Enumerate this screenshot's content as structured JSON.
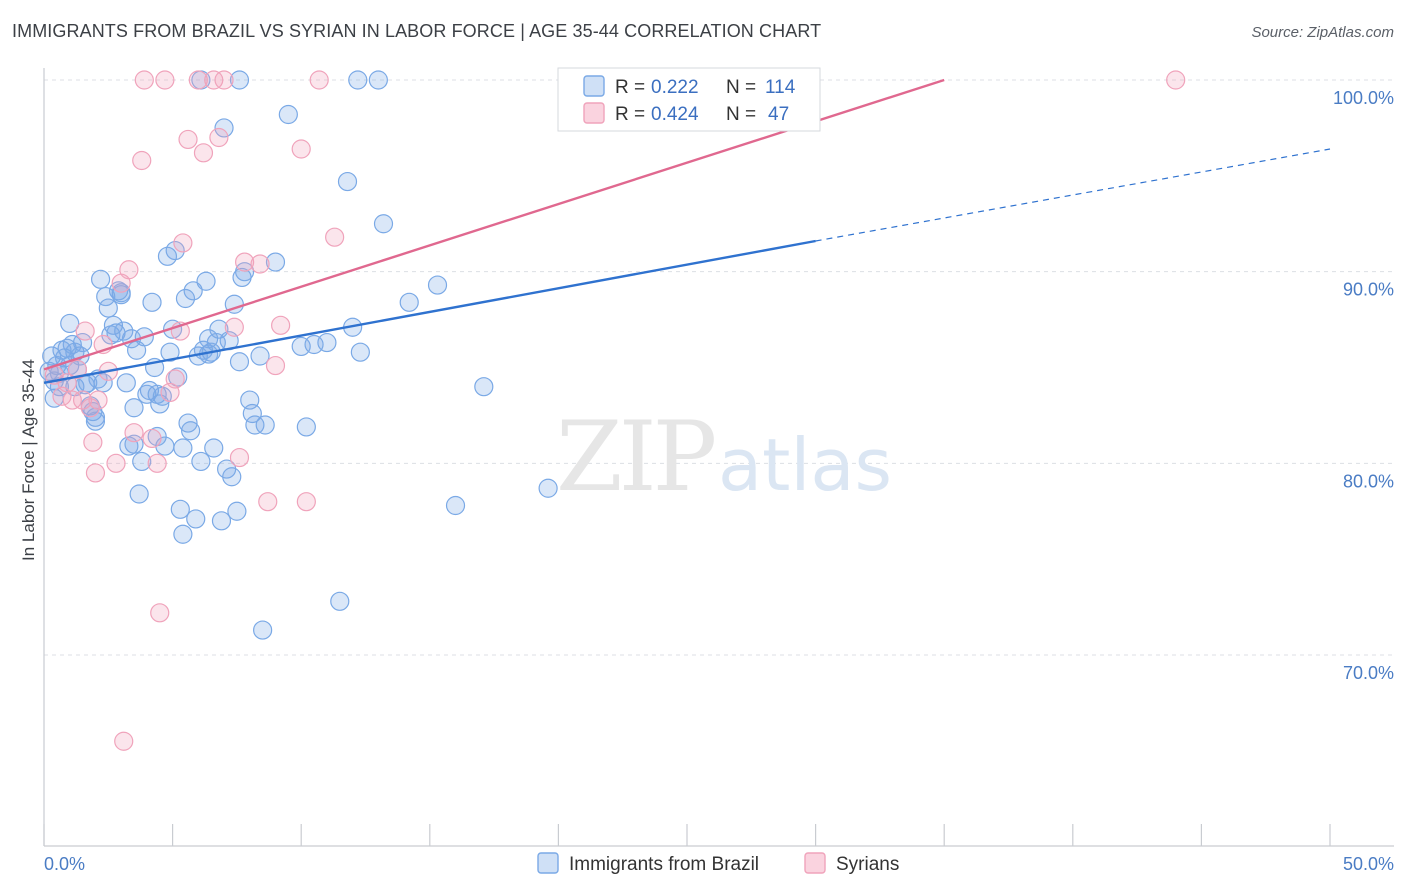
{
  "header": {
    "title": "IMMIGRANTS FROM BRAZIL VS SYRIAN IN LABOR FORCE | AGE 35-44 CORRELATION CHART",
    "source": "Source: ZipAtlas.com"
  },
  "watermark": {
    "zip": "ZIP",
    "atlas": "atlas"
  },
  "legend": {
    "rows": [
      {
        "r_label": "R =",
        "r_value": "0.222",
        "n_label": "N =",
        "n_value": "114",
        "color": "#7aa9e6"
      },
      {
        "r_label": "R =",
        "r_value": "0.424",
        "n_label": "N =",
        "n_value": "47",
        "color": "#f0a3bb"
      }
    ]
  },
  "bottom_legend": [
    "Immigrants from Brazil",
    "Syrians"
  ],
  "chart_data": {
    "type": "scatter",
    "xlabel": "",
    "ylabel": "In Labor Force | Age 35-44",
    "xlim": [
      0,
      50
    ],
    "ylim": [
      60,
      100.5
    ],
    "x_tick_labels": [
      {
        "v": 0,
        "label": "0.0%"
      },
      {
        "v": 50,
        "label": "50.0%"
      }
    ],
    "y_tick_labels": [
      {
        "v": 100,
        "label": "100.0%"
      },
      {
        "v": 90,
        "label": "90.0%"
      },
      {
        "v": 80,
        "label": "80.0%"
      },
      {
        "v": 70,
        "label": "70.0%"
      }
    ],
    "grid": "horizontal dashed",
    "series": [
      {
        "name": "Immigrants from Brazil",
        "color": "#7aa9e6",
        "line_color": "#2f72cf",
        "trend": {
          "x": [
            0,
            30
          ],
          "y": [
            84.2,
            91.6
          ],
          "dashed_to": [
            50,
            96.4
          ]
        },
        "points": [
          [
            0.2,
            84.8
          ],
          [
            0.3,
            85.6
          ],
          [
            0.4,
            84.3
          ],
          [
            0.5,
            85.1
          ],
          [
            0.6,
            84.0
          ],
          [
            0.7,
            85.9
          ],
          [
            0.8,
            85.5
          ],
          [
            0.9,
            86.0
          ],
          [
            1.0,
            87.3
          ],
          [
            1.1,
            86.2
          ],
          [
            1.2,
            85.8
          ],
          [
            1.3,
            84.9
          ],
          [
            1.4,
            85.6
          ],
          [
            1.5,
            86.3
          ],
          [
            1.6,
            84.1
          ],
          [
            1.7,
            84.2
          ],
          [
            1.8,
            83.0
          ],
          [
            1.9,
            82.7
          ],
          [
            2.0,
            82.4
          ],
          [
            2.1,
            84.4
          ],
          [
            2.2,
            89.6
          ],
          [
            2.3,
            84.2
          ],
          [
            2.4,
            88.7
          ],
          [
            2.5,
            88.1
          ],
          [
            2.6,
            86.7
          ],
          [
            2.7,
            87.2
          ],
          [
            2.8,
            86.8
          ],
          [
            2.9,
            89.0
          ],
          [
            3.0,
            88.8
          ],
          [
            3.1,
            86.9
          ],
          [
            3.2,
            84.2
          ],
          [
            3.3,
            80.9
          ],
          [
            3.4,
            86.5
          ],
          [
            3.5,
            81.0
          ],
          [
            3.6,
            85.9
          ],
          [
            3.7,
            78.4
          ],
          [
            3.8,
            80.1
          ],
          [
            3.9,
            86.6
          ],
          [
            4.0,
            83.6
          ],
          [
            4.1,
            83.8
          ],
          [
            4.2,
            88.4
          ],
          [
            4.3,
            85.0
          ],
          [
            4.4,
            81.4
          ],
          [
            4.5,
            83.1
          ],
          [
            4.6,
            83.5
          ],
          [
            4.7,
            80.9
          ],
          [
            4.8,
            90.8
          ],
          [
            4.9,
            85.8
          ],
          [
            5.0,
            87.0
          ],
          [
            5.1,
            91.1
          ],
          [
            5.2,
            84.5
          ],
          [
            5.3,
            77.6
          ],
          [
            5.4,
            80.8
          ],
          [
            5.5,
            88.6
          ],
          [
            5.6,
            82.1
          ],
          [
            5.7,
            81.7
          ],
          [
            5.8,
            89.0
          ],
          [
            5.9,
            77.1
          ],
          [
            6.0,
            85.6
          ],
          [
            6.1,
            80.1
          ],
          [
            6.2,
            85.9
          ],
          [
            6.3,
            89.5
          ],
          [
            6.4,
            86.5
          ],
          [
            6.5,
            85.8
          ],
          [
            6.6,
            80.8
          ],
          [
            6.7,
            86.3
          ],
          [
            6.8,
            87.0
          ],
          [
            6.9,
            77.0
          ],
          [
            7.0,
            97.5
          ],
          [
            7.1,
            79.7
          ],
          [
            7.2,
            86.4
          ],
          [
            7.3,
            79.3
          ],
          [
            7.4,
            88.3
          ],
          [
            7.5,
            77.5
          ],
          [
            7.6,
            85.3
          ],
          [
            7.7,
            89.7
          ],
          [
            7.8,
            90.0
          ],
          [
            8.0,
            83.3
          ],
          [
            8.1,
            82.6
          ],
          [
            8.2,
            82.0
          ],
          [
            8.4,
            85.6
          ],
          [
            8.5,
            71.3
          ],
          [
            8.6,
            82.0
          ],
          [
            9.0,
            90.5
          ],
          [
            9.5,
            98.2
          ],
          [
            10.0,
            86.1
          ],
          [
            10.2,
            81.9
          ],
          [
            10.5,
            86.2
          ],
          [
            11.0,
            86.3
          ],
          [
            11.5,
            72.8
          ],
          [
            11.8,
            94.7
          ],
          [
            12.0,
            87.1
          ],
          [
            12.3,
            85.8
          ],
          [
            13.0,
            100.0
          ],
          [
            13.2,
            92.5
          ],
          [
            14.2,
            88.4
          ],
          [
            15.3,
            89.3
          ],
          [
            16.0,
            77.8
          ],
          [
            17.1,
            84.0
          ],
          [
            19.6,
            78.7
          ],
          [
            22.5,
            100.0
          ],
          [
            5.4,
            76.3
          ],
          [
            6.1,
            100.0
          ],
          [
            7.6,
            100.0
          ],
          [
            12.2,
            100.0
          ],
          [
            0.4,
            83.4
          ],
          [
            1.2,
            84.0
          ],
          [
            3.0,
            88.9
          ],
          [
            4.4,
            83.6
          ],
          [
            2.0,
            82.2
          ],
          [
            6.4,
            85.7
          ],
          [
            0.6,
            84.7
          ],
          [
            1.0,
            85.1
          ],
          [
            3.5,
            82.9
          ]
        ]
      },
      {
        "name": "Syrians",
        "color": "#f0a3bb",
        "line_color": "#e0688f",
        "trend": {
          "x": [
            0,
            35
          ],
          "y": [
            84.9,
            100.0
          ]
        },
        "points": [
          [
            0.4,
            84.6
          ],
          [
            0.7,
            83.5
          ],
          [
            0.9,
            84.2
          ],
          [
            1.1,
            83.3
          ],
          [
            1.3,
            84.9
          ],
          [
            1.5,
            83.3
          ],
          [
            1.6,
            86.9
          ],
          [
            1.8,
            82.9
          ],
          [
            1.9,
            81.1
          ],
          [
            2.0,
            79.5
          ],
          [
            2.1,
            83.3
          ],
          [
            2.3,
            86.2
          ],
          [
            2.5,
            84.8
          ],
          [
            2.8,
            80.0
          ],
          [
            3.0,
            89.4
          ],
          [
            3.1,
            65.5
          ],
          [
            3.3,
            90.1
          ],
          [
            3.5,
            81.6
          ],
          [
            3.8,
            95.8
          ],
          [
            3.9,
            100.0
          ],
          [
            4.2,
            81.3
          ],
          [
            4.4,
            80.0
          ],
          [
            4.5,
            72.2
          ],
          [
            4.9,
            83.7
          ],
          [
            5.1,
            84.4
          ],
          [
            5.3,
            86.9
          ],
          [
            5.4,
            91.5
          ],
          [
            5.6,
            96.9
          ],
          [
            6.0,
            100.0
          ],
          [
            6.2,
            96.2
          ],
          [
            6.6,
            100.0
          ],
          [
            6.8,
            97.0
          ],
          [
            7.0,
            100.0
          ],
          [
            7.4,
            87.1
          ],
          [
            7.6,
            80.3
          ],
          [
            7.8,
            90.5
          ],
          [
            8.4,
            90.4
          ],
          [
            8.7,
            78.0
          ],
          [
            9.0,
            85.1
          ],
          [
            9.2,
            87.2
          ],
          [
            10.0,
            96.4
          ],
          [
            10.2,
            78.0
          ],
          [
            10.7,
            100.0
          ],
          [
            11.3,
            91.8
          ],
          [
            28.6,
            100.0
          ],
          [
            44.0,
            100.0
          ],
          [
            4.7,
            100.0
          ]
        ]
      }
    ]
  }
}
